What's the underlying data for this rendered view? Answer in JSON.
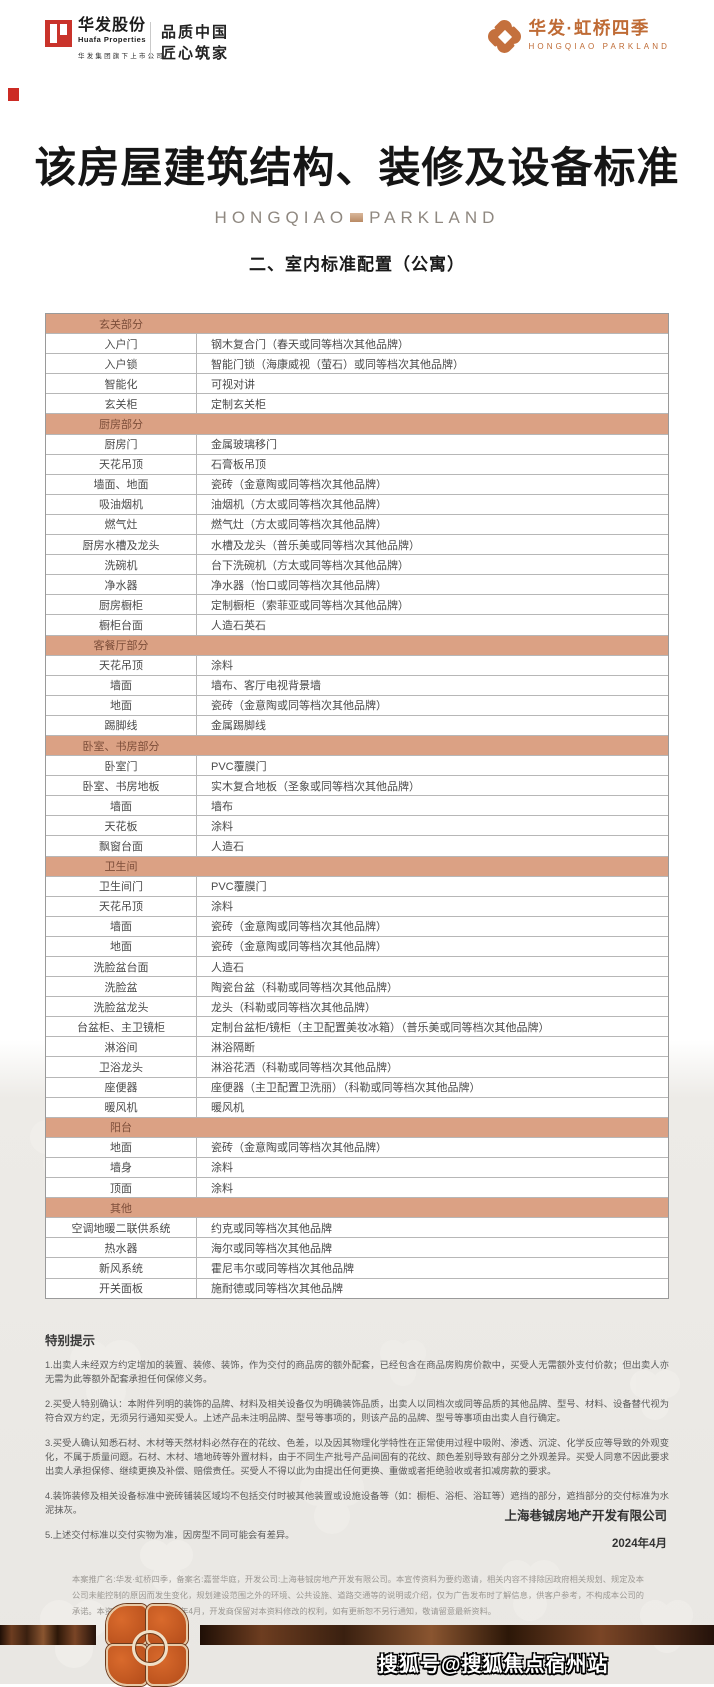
{
  "header": {
    "logo_left": {
      "cn": "华发股份",
      "en": "Huafa Properties",
      "sub": "华发集团旗下上市公司"
    },
    "slogan_line1": "品质中国",
    "slogan_line2": "匠心筑家",
    "logo_right": {
      "cn": "华发·虹桥四季",
      "en": "HONGQIAO PARKLAND"
    }
  },
  "title": "该房屋建筑结构、装修及设备标准",
  "subtitle": {
    "word1": "HONGQIAO",
    "word2": "PARKLAND"
  },
  "section_title": "二、室内标准配置（公寓）",
  "table": {
    "sections": [
      {
        "header": "玄关部分",
        "rows": [
          [
            "入户门",
            "钢木复合门（春天或同等档次其他品牌）"
          ],
          [
            "入户锁",
            "智能门锁（海康威视（萤石）或同等档次其他品牌）"
          ],
          [
            "智能化",
            "可视对讲"
          ],
          [
            "玄关柜",
            "定制玄关柜"
          ]
        ]
      },
      {
        "header": "厨房部分",
        "rows": [
          [
            "厨房门",
            "金属玻璃移门"
          ],
          [
            "天花吊顶",
            "石膏板吊顶"
          ],
          [
            "墙面、地面",
            "瓷砖（金意陶或同等档次其他品牌）"
          ],
          [
            "吸油烟机",
            "油烟机（方太或同等档次其他品牌）"
          ],
          [
            "燃气灶",
            "燃气灶（方太或同等档次其他品牌）"
          ],
          [
            "厨房水槽及龙头",
            "水槽及龙头（普乐美或同等档次其他品牌）"
          ],
          [
            "洗碗机",
            "台下洗碗机（方太或同等档次其他品牌）"
          ],
          [
            "净水器",
            "净水器（怡口或同等档次其他品牌）"
          ],
          [
            "厨房橱柜",
            "定制橱柜（索菲亚或同等档次其他品牌）"
          ],
          [
            "橱柜台面",
            "人造石英石"
          ]
        ]
      },
      {
        "header": "客餐厅部分",
        "rows": [
          [
            "天花吊顶",
            "涂料"
          ],
          [
            "墙面",
            "墙布、客厅电视背景墙"
          ],
          [
            "地面",
            "瓷砖（金意陶或同等档次其他品牌）"
          ],
          [
            "踢脚线",
            "金属踢脚线"
          ]
        ]
      },
      {
        "header": "卧室、书房部分",
        "rows": [
          [
            "卧室门",
            "PVC覆膜门"
          ],
          [
            "卧室、书房地板",
            "实木复合地板（圣象或同等档次其他品牌）"
          ],
          [
            "墙面",
            "墙布"
          ],
          [
            "天花板",
            "涂料"
          ],
          [
            "飘窗台面",
            "人造石"
          ]
        ]
      },
      {
        "header": "卫生间",
        "rows": [
          [
            "卫生间门",
            "PVC覆膜门"
          ],
          [
            "天花吊顶",
            "涂料"
          ],
          [
            "墙面",
            "瓷砖（金意陶或同等档次其他品牌）"
          ],
          [
            "地面",
            "瓷砖（金意陶或同等档次其他品牌）"
          ],
          [
            "洗脸盆台面",
            "人造石"
          ],
          [
            "洗脸盆",
            "陶瓷台盆（科勒或同等档次其他品牌）"
          ],
          [
            "洗脸盆龙头",
            "龙头（科勒或同等档次其他品牌）"
          ],
          [
            "台盆柜、主卫镜柜",
            "定制台盆柜/镜柜（主卫配置美妆冰箱）（普乐美或同等档次其他品牌）"
          ],
          [
            "淋浴间",
            "淋浴隔断"
          ],
          [
            "卫浴龙头",
            "淋浴花洒（科勒或同等档次其他品牌）"
          ],
          [
            "座便器",
            "座便器（主卫配置卫洗丽）（科勒或同等档次其他品牌）"
          ],
          [
            "暖风机",
            "暖风机"
          ]
        ]
      },
      {
        "header": "阳台",
        "rows": [
          [
            "地面",
            "瓷砖（金意陶或同等档次其他品牌）"
          ],
          [
            "墙身",
            "涂料"
          ],
          [
            "顶面",
            "涂料"
          ]
        ]
      },
      {
        "header": "其他",
        "rows": [
          [
            "空调地暖二联供系统",
            "约克或同等档次其他品牌"
          ],
          [
            "热水器",
            "海尔或同等档次其他品牌"
          ],
          [
            "新风系统",
            "霍尼韦尔或同等档次其他品牌"
          ],
          [
            "开关面板",
            "施耐德或同等档次其他品牌"
          ]
        ]
      }
    ]
  },
  "notes": {
    "title": "特别提示",
    "items": [
      "1.出卖人未经双方约定增加的装置、装修、装饰，作为交付的商品房的额外配套，已经包含在商品房购房价款中，买受人无需额外支付价款；但出卖人亦无需为此等额外配套承担任何保修义务。",
      "2.买受人特别确认：本附件列明的装饰的品牌、材料及相关设备仅为明确装饰品质，出卖人以同档次或同等品质的其他品牌、型号、材料、设备替代视为符合双方约定，无须另行通知买受人。上述产品未注明品牌、型号等事项的，则该产品的品牌、型号等事项由出卖人自行确定。",
      "3.买受人确认知悉石材、木材等天然材料必然存在的花纹、色差，以及因其物理化学特性在正常使用过程中吸附、渗透、沉淀、化学反应等导致的外观变化，不属于质量问题。石材、木材、墙地砖等外置材料，由于不同生产批号产品间固有的花纹、颜色差别导致有部分之外观差异。买受人同意不因此要求出卖人承担保修、继续更换及补偿、赔偿责任。买受人不得以此为由提出任何更换、重做或者拒绝验收或者扣减房款的要求。",
      "4.装饰装修及相关设备标准中瓷砖铺装区域均不包括交付时被其他装置或设施设备等（如：橱柜、浴柜、浴缸等）遮挡的部分，遮挡部分的交付标准为水泥抹灰。",
      "5.上述交付标准以交付实物为准，因房型不同可能会有差异。"
    ]
  },
  "signature": {
    "company": "上海巷铖房地产开发有限公司",
    "date": "2024年4月"
  },
  "footer_disclaimer": "本案推广名:华发·虹桥四季，备案名:嘉誉华庭，开发公司:上海巷铖房地产开发有限公司。本宣传资料为要约邀请，相关内容不排除因政府相关规划、规定及本公司未能控制的原因而发生变化，规划建设范围之外的环境、公共设施、道路交通等的说明或介绍，仅为广告发布时了解信息，供客户参考，不构成本公司的承诺。本资料制作时间为2024年4月，开发商保留对本资料修改的权利，如有更新恕不另行通知，敬请留意最新资料。",
  "watermark": "搜狐号@搜狐焦点宿州站",
  "colors": {
    "accent_orange": "#bf6b35",
    "table_header_bg": "#dba184",
    "table_header_text": "#7d4e3a",
    "logo_red": "#c9332b",
    "ribbon_copper": "#7a4526"
  }
}
